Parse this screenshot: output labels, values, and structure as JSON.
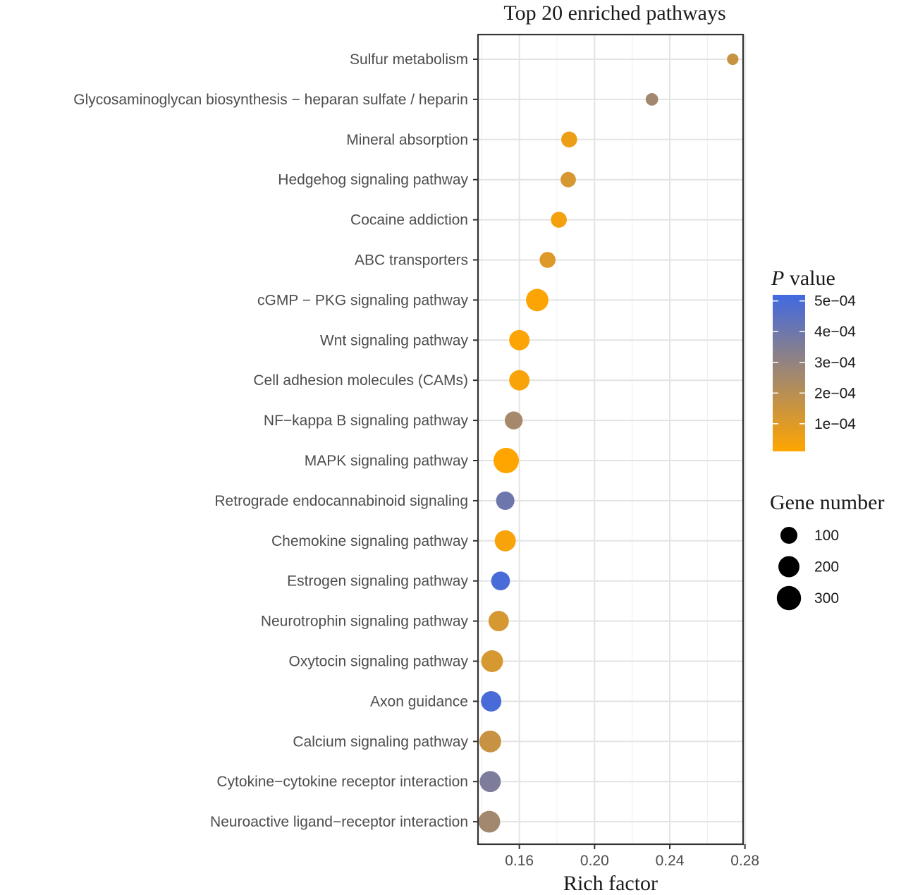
{
  "chart_data": {
    "type": "scatter",
    "title": "Top 20 enriched pathways",
    "xlabel": "Rich factor",
    "ylabel": "",
    "xlim": [
      0.138,
      0.279
    ],
    "xticks": [
      "0.16",
      "0.20",
      "0.24",
      "0.28"
    ],
    "xtick_values": [
      0.16,
      0.2,
      0.24,
      0.28
    ],
    "grid": true,
    "points": [
      {
        "pathway": "Sulfur metabolism",
        "rich_factor": 0.2735,
        "gene_number": 20,
        "p_value": 0.00016
      },
      {
        "pathway": "Glycosaminoglycan biosynthesis − heparan sulfate / heparin",
        "rich_factor": 0.2305,
        "gene_number": 30,
        "p_value": 0.00026
      },
      {
        "pathway": "Mineral absorption",
        "rich_factor": 0.1865,
        "gene_number": 80,
        "p_value": 6e-05
      },
      {
        "pathway": "Hedgehog signaling pathway",
        "rich_factor": 0.186,
        "gene_number": 70,
        "p_value": 0.00012
      },
      {
        "pathway": "Cocaine addiction",
        "rich_factor": 0.181,
        "gene_number": 80,
        "p_value": 4e-05
      },
      {
        "pathway": "ABC transporters",
        "rich_factor": 0.175,
        "gene_number": 80,
        "p_value": 0.0001
      },
      {
        "pathway": "cGMP − PKG signaling pathway",
        "rich_factor": 0.1695,
        "gene_number": 240,
        "p_value": 2e-05
      },
      {
        "pathway": "Wnt signaling pathway",
        "rich_factor": 0.16,
        "gene_number": 180,
        "p_value": 2e-05
      },
      {
        "pathway": "Cell adhesion molecules (CAMs)",
        "rich_factor": 0.16,
        "gene_number": 180,
        "p_value": 3e-05
      },
      {
        "pathway": "NF−kappa B signaling pathway",
        "rich_factor": 0.157,
        "gene_number": 120,
        "p_value": 0.00025
      },
      {
        "pathway": "MAPK signaling pathway",
        "rich_factor": 0.153,
        "gene_number": 340,
        "p_value": 1e-05
      },
      {
        "pathway": "Retrograde endocannabinoid signaling",
        "rich_factor": 0.1525,
        "gene_number": 130,
        "p_value": 0.0004
      },
      {
        "pathway": "Chemokine signaling pathway",
        "rich_factor": 0.1525,
        "gene_number": 200,
        "p_value": 3e-05
      },
      {
        "pathway": "Estrogen signaling pathway",
        "rich_factor": 0.15,
        "gene_number": 140,
        "p_value": 0.0005
      },
      {
        "pathway": "Neurotrophin signaling pathway",
        "rich_factor": 0.149,
        "gene_number": 180,
        "p_value": 0.00012
      },
      {
        "pathway": "Oxytocin signaling pathway",
        "rich_factor": 0.1455,
        "gene_number": 220,
        "p_value": 0.00012
      },
      {
        "pathway": "Axon guidance",
        "rich_factor": 0.145,
        "gene_number": 180,
        "p_value": 0.0005
      },
      {
        "pathway": "Calcium signaling pathway",
        "rich_factor": 0.1445,
        "gene_number": 220,
        "p_value": 0.00016
      },
      {
        "pathway": "Cytokine−cytokine receptor interaction",
        "rich_factor": 0.1445,
        "gene_number": 200,
        "p_value": 0.00036
      },
      {
        "pathway": "Neuroactive ligand−receptor interaction",
        "rich_factor": 0.144,
        "gene_number": 220,
        "p_value": 0.00026
      }
    ],
    "legend_color": {
      "title_italic": "P",
      "title_rest": " value",
      "placement": "right",
      "low_color": "#ffa500",
      "high_color": "#4169e1",
      "range": [
        1e-05,
        0.00052
      ],
      "ticks": [
        "5e−04",
        "4e−04",
        "3e−04",
        "2e−04",
        "1e−04"
      ],
      "tick_values": [
        0.0005,
        0.0004,
        0.0003,
        0.0002,
        0.0001
      ]
    },
    "legend_size": {
      "title": "Gene number",
      "placement": "right",
      "labels": [
        "100",
        "200",
        "300"
      ],
      "values": [
        100,
        200,
        300
      ]
    }
  }
}
